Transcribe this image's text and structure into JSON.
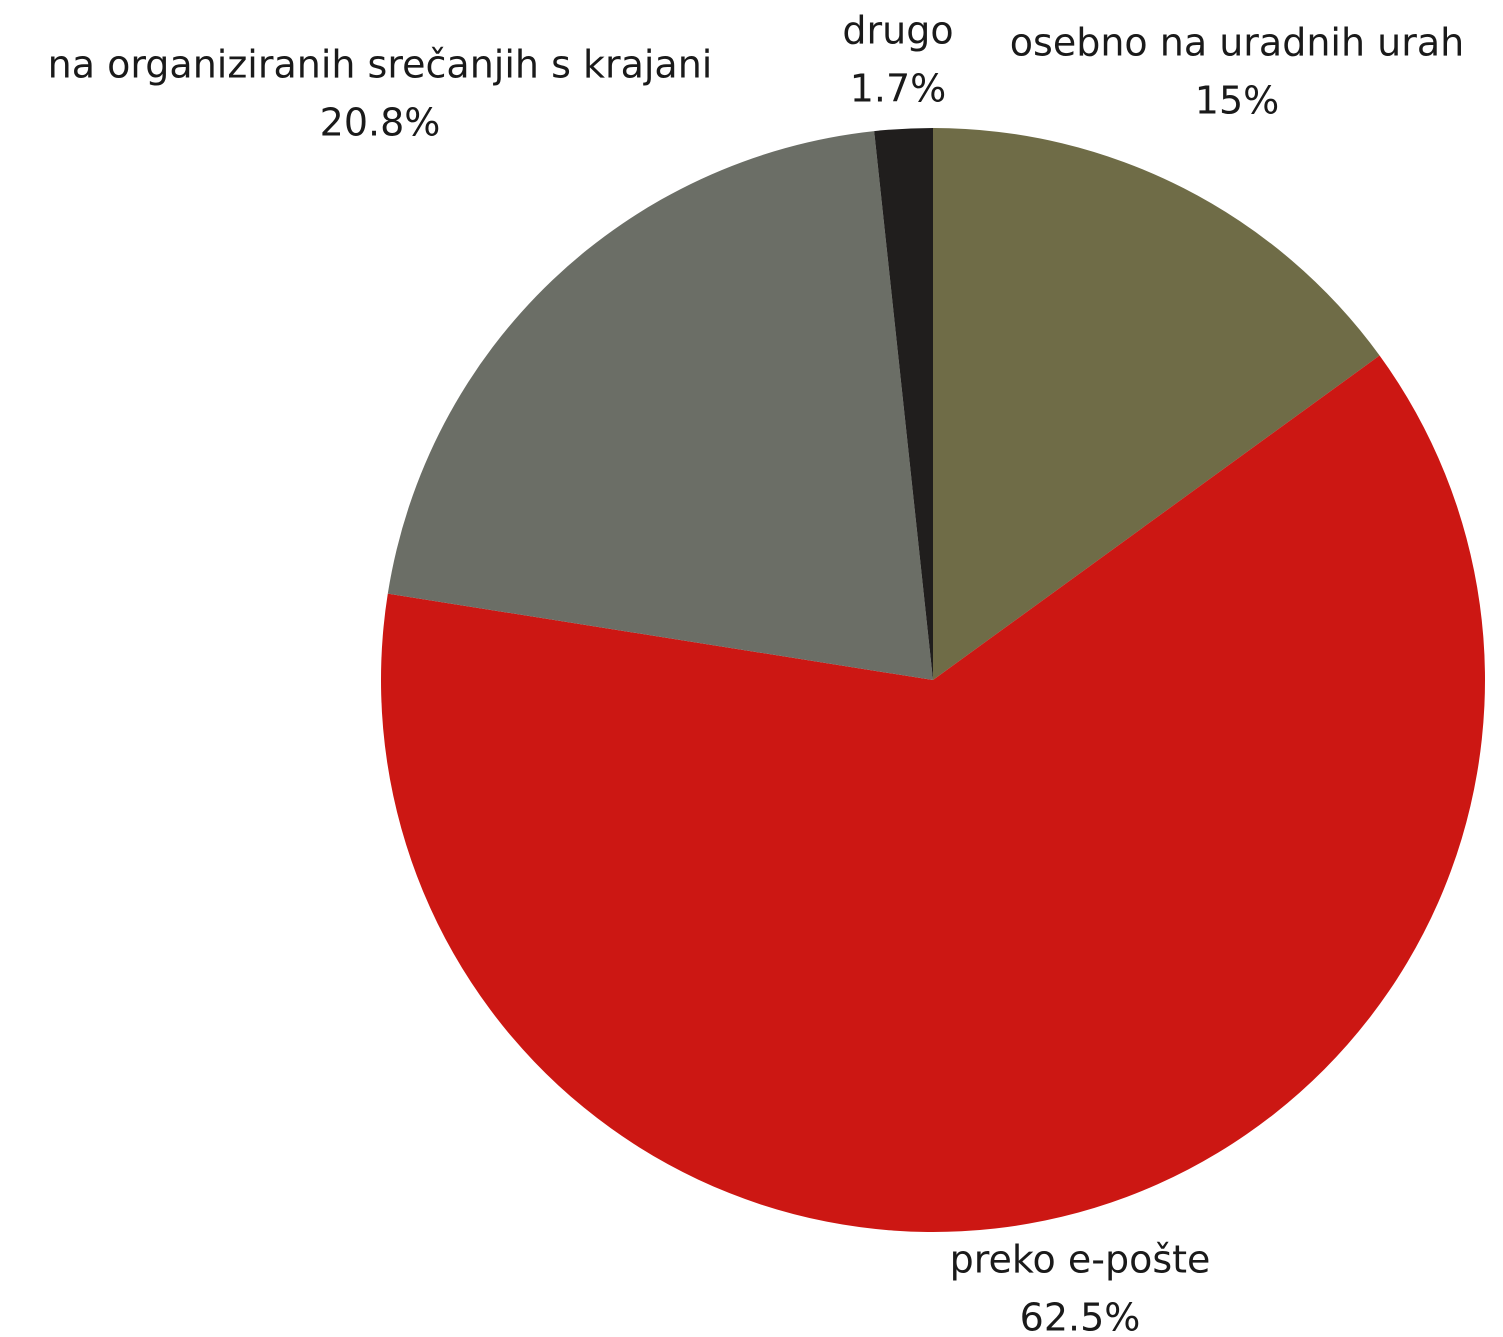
{
  "chart_data": {
    "type": "pie",
    "categories": [
      "osebno na uradnih urah",
      "preko e-pošte",
      "na organiziranih srečanjih s krajani",
      "drugo"
    ],
    "values": [
      15,
      62.5,
      20.8,
      1.7
    ],
    "value_labels": [
      "15%",
      "62.5%",
      "20.8%",
      "1.7%"
    ],
    "colors": [
      "#6f6c47",
      "#cc1713",
      "#6b6e66",
      "#201e1d"
    ]
  }
}
